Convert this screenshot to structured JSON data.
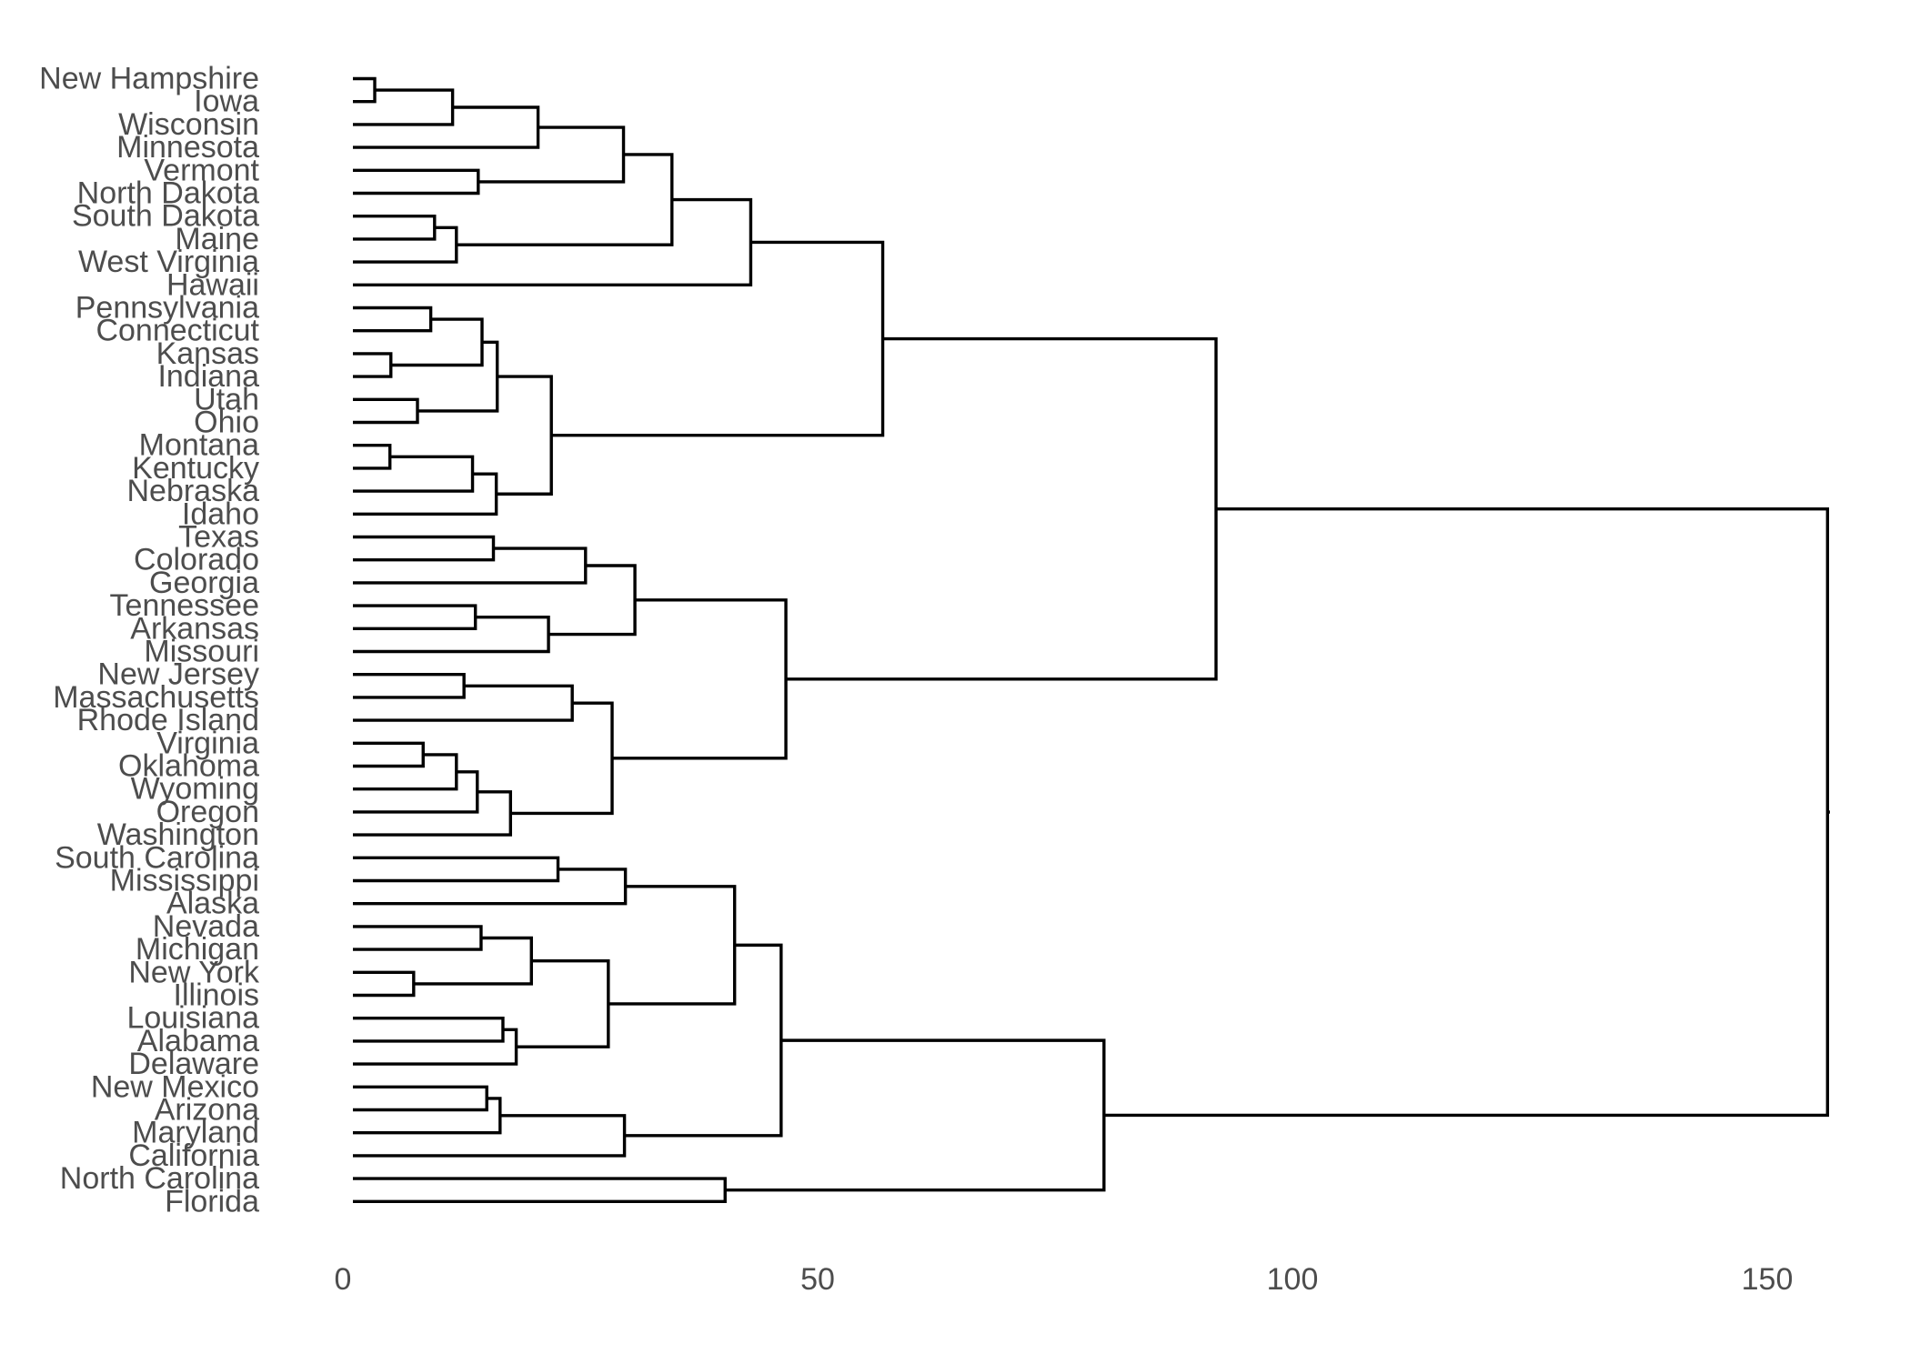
{
  "chart_data": {
    "type": "dendrogram",
    "orientation": "horizontal",
    "title": "",
    "xlabel": "",
    "ylabel": "",
    "xlim": [
      0,
      157
    ],
    "xticks": [
      0,
      50,
      100,
      150
    ],
    "grid": false,
    "line_color": "#000000",
    "label_color": "#4d4d4d",
    "leaves": [
      "New Hampshire",
      "Iowa",
      "Wisconsin",
      "Minnesota",
      "Vermont",
      "North Dakota",
      "South Dakota",
      "Maine",
      "West Virginia",
      "Hawaii",
      "Pennsylvania",
      "Connecticut",
      "Kansas",
      "Indiana",
      "Utah",
      "Ohio",
      "Montana",
      "Kentucky",
      "Nebraska",
      "Idaho",
      "Texas",
      "Colorado",
      "Georgia",
      "Tennessee",
      "Arkansas",
      "Missouri",
      "New Jersey",
      "Massachusetts",
      "Rhode Island",
      "Virginia",
      "Oklahoma",
      "Wyoming",
      "Oregon",
      "Washington",
      "South Carolina",
      "Mississippi",
      "Alaska",
      "Nevada",
      "Michigan",
      "New York",
      "Illinois",
      "Louisiana",
      "Alabama",
      "Delaware",
      "New Mexico",
      "Arizona",
      "Maryland",
      "California",
      "North Carolina",
      "Florida"
    ],
    "merges": [
      {
        "id": "c01",
        "children": [
          "New Hampshire",
          "Iowa"
        ],
        "height": 2.3
      },
      {
        "id": "c02",
        "children": [
          "c01",
          "Wisconsin"
        ],
        "height": 10.5
      },
      {
        "id": "c03",
        "children": [
          "c02",
          "Minnesota"
        ],
        "height": 19.5
      },
      {
        "id": "c04",
        "children": [
          "Vermont",
          "North Dakota"
        ],
        "height": 13.2
      },
      {
        "id": "c05",
        "children": [
          "c03",
          "c04"
        ],
        "height": 28.5
      },
      {
        "id": "c06",
        "children": [
          "South Dakota",
          "Maine"
        ],
        "height": 8.6
      },
      {
        "id": "c07",
        "children": [
          "c06",
          "West Virginia"
        ],
        "height": 10.9
      },
      {
        "id": "c08",
        "children": [
          "c05",
          "c07"
        ],
        "height": 33.6
      },
      {
        "id": "c09",
        "children": [
          "c08",
          "Hawaii"
        ],
        "height": 41.9
      },
      {
        "id": "c10",
        "children": [
          "Pennsylvania",
          "Connecticut"
        ],
        "height": 8.2
      },
      {
        "id": "c11",
        "children": [
          "Kansas",
          "Indiana"
        ],
        "height": 4.0
      },
      {
        "id": "c12",
        "children": [
          "c10",
          "c11"
        ],
        "height": 13.6
      },
      {
        "id": "c13",
        "children": [
          "Utah",
          "Ohio"
        ],
        "height": 6.8
      },
      {
        "id": "c14",
        "children": [
          "c12",
          "c13"
        ],
        "height": 15.2
      },
      {
        "id": "c15",
        "children": [
          "Montana",
          "Kentucky"
        ],
        "height": 3.9
      },
      {
        "id": "c16",
        "children": [
          "c15",
          "Nebraska"
        ],
        "height": 12.6
      },
      {
        "id": "c17",
        "children": [
          "c16",
          "Idaho"
        ],
        "height": 15.1
      },
      {
        "id": "c18",
        "children": [
          "c14",
          "c17"
        ],
        "height": 20.9
      },
      {
        "id": "c19",
        "children": [
          "c09",
          "c18"
        ],
        "height": 55.8
      },
      {
        "id": "c20",
        "children": [
          "Texas",
          "Colorado"
        ],
        "height": 14.8
      },
      {
        "id": "c21",
        "children": [
          "c20",
          "Georgia"
        ],
        "height": 24.5
      },
      {
        "id": "c22",
        "children": [
          "Tennessee",
          "Arkansas"
        ],
        "height": 12.9
      },
      {
        "id": "c23",
        "children": [
          "c22",
          "Missouri"
        ],
        "height": 20.6
      },
      {
        "id": "c24",
        "children": [
          "c21",
          "c23"
        ],
        "height": 29.7
      },
      {
        "id": "c25",
        "children": [
          "New Jersey",
          "Massachusetts"
        ],
        "height": 11.7
      },
      {
        "id": "c26",
        "children": [
          "c25",
          "Rhode Island"
        ],
        "height": 23.1
      },
      {
        "id": "c27",
        "children": [
          "Virginia",
          "Oklahoma"
        ],
        "height": 7.4
      },
      {
        "id": "c28",
        "children": [
          "c27",
          "Wyoming"
        ],
        "height": 10.9
      },
      {
        "id": "c29",
        "children": [
          "c28",
          "Oregon"
        ],
        "height": 13.1
      },
      {
        "id": "c30",
        "children": [
          "c29",
          "Washington"
        ],
        "height": 16.6
      },
      {
        "id": "c31",
        "children": [
          "c26",
          "c30"
        ],
        "height": 27.3
      },
      {
        "id": "c32",
        "children": [
          "c24",
          "c31"
        ],
        "height": 45.6
      },
      {
        "id": "c33",
        "children": [
          "c19",
          "c32"
        ],
        "height": 90.9
      },
      {
        "id": "c34",
        "children": [
          "South Carolina",
          "Mississippi"
        ],
        "height": 21.6
      },
      {
        "id": "c35",
        "children": [
          "c34",
          "Alaska"
        ],
        "height": 28.7
      },
      {
        "id": "c36",
        "children": [
          "Nevada",
          "Michigan"
        ],
        "height": 13.5
      },
      {
        "id": "c37",
        "children": [
          "New York",
          "Illinois"
        ],
        "height": 6.4
      },
      {
        "id": "c38",
        "children": [
          "c36",
          "c37"
        ],
        "height": 18.8
      },
      {
        "id": "c39",
        "children": [
          "Louisiana",
          "Alabama"
        ],
        "height": 15.8
      },
      {
        "id": "c40",
        "children": [
          "c39",
          "Delaware"
        ],
        "height": 17.2
      },
      {
        "id": "c41",
        "children": [
          "c38",
          "c40"
        ],
        "height": 26.9
      },
      {
        "id": "c42",
        "children": [
          "c35",
          "c41"
        ],
        "height": 40.2
      },
      {
        "id": "c43",
        "children": [
          "New Mexico",
          "Arizona"
        ],
        "height": 14.1
      },
      {
        "id": "c44",
        "children": [
          "c43",
          "Maryland"
        ],
        "height": 15.5
      },
      {
        "id": "c45",
        "children": [
          "c44",
          "California"
        ],
        "height": 28.6
      },
      {
        "id": "c46",
        "children": [
          "c42",
          "c45"
        ],
        "height": 45.1
      },
      {
        "id": "c47",
        "children": [
          "North Carolina",
          "Florida"
        ],
        "height": 39.2
      },
      {
        "id": "c48",
        "children": [
          "c46",
          "c47"
        ],
        "height": 79.1
      },
      {
        "id": "c49",
        "children": [
          "c33",
          "c48"
        ],
        "height": 155.3
      }
    ]
  }
}
